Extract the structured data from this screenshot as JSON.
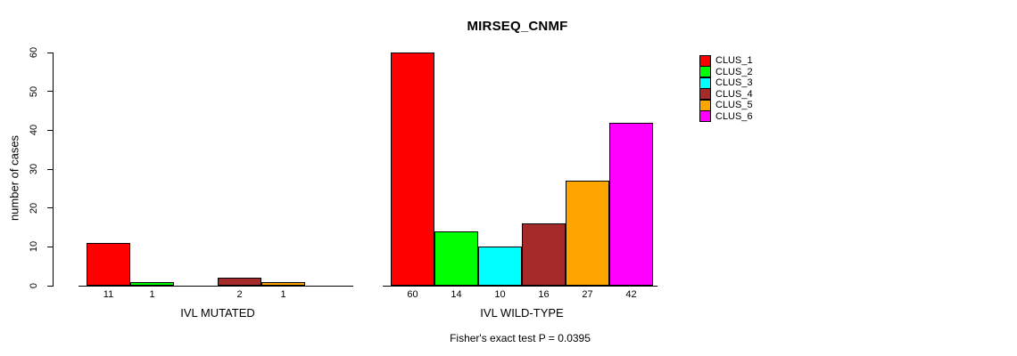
{
  "chart_data": {
    "type": "bar",
    "title": "MIRSEQ_CNMF",
    "subtitle": "Fisher's exact test P = 0.0395",
    "ylabel": "number of cases",
    "xlabel": "",
    "ylim": [
      0,
      60
    ],
    "yticks": [
      0,
      10,
      20,
      30,
      40,
      50,
      60
    ],
    "grid": false,
    "legend_position": "top-right",
    "series": [
      {
        "name": "CLUS_1",
        "color": "#ff0000"
      },
      {
        "name": "CLUS_2",
        "color": "#00ff00"
      },
      {
        "name": "CLUS_3",
        "color": "#00ffff"
      },
      {
        "name": "CLUS_4",
        "color": "#a52a2a"
      },
      {
        "name": "CLUS_5",
        "color": "#ffa500"
      },
      {
        "name": "CLUS_6",
        "color": "#ff00ff"
      }
    ],
    "groups": [
      {
        "label": "IVL MUTATED",
        "values": [
          11,
          1,
          0,
          2,
          1,
          0
        ]
      },
      {
        "label": "IVL WILD-TYPE",
        "values": [
          60,
          14,
          10,
          16,
          27,
          42
        ]
      }
    ],
    "zero_value_bars_hidden": true,
    "bar_value_labels_shown": true
  }
}
